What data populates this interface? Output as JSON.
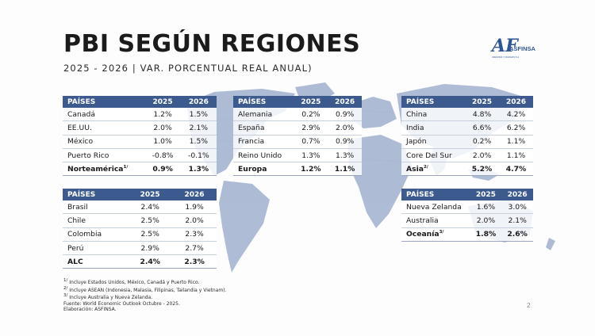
{
  "title": "PBI SEGÚN REGIONES",
  "subtitle": "2025 - 2026 | VAR. PORCENTUAL REAL ANUAL)",
  "logo": {
    "mark": "AF",
    "name": "ASFINSA",
    "tagline": "ASESORÍA Y FINANZAS S.A."
  },
  "tables": {
    "america": {
      "head": [
        "PAÍSES",
        "2025",
        "2026"
      ],
      "rows": [
        [
          "Canadá",
          "1.2%",
          "1.5%"
        ],
        [
          "EE.UU.",
          "2.0%",
          "2.1%"
        ],
        [
          "México",
          "1.0%",
          "1.5%"
        ],
        [
          "Puerto Rico",
          "-0.8%",
          "-0.1%"
        ]
      ],
      "total": [
        "Norteamérica",
        "1/",
        "0.9%",
        "1.3%"
      ]
    },
    "europa": {
      "head": [
        "PAÍSES",
        "2025",
        "2026"
      ],
      "rows": [
        [
          "Alemania",
          "0.2%",
          "0.9%"
        ],
        [
          "España",
          "2.9%",
          "2.0%"
        ],
        [
          "Francia",
          "0.7%",
          "0.9%"
        ],
        [
          "Reino Unido",
          "1.3%",
          "1.3%"
        ]
      ],
      "total": [
        "Europa",
        "",
        "1.2%",
        "1.1%"
      ]
    },
    "asia": {
      "head": [
        "PAÍSES",
        "2025",
        "2026"
      ],
      "rows": [
        [
          "China",
          "4.8%",
          "4.2%"
        ],
        [
          "India",
          "6.6%",
          "6.2%"
        ],
        [
          "Japón",
          "0.2%",
          "1.1%"
        ],
        [
          "Core Del Sur",
          "2.0%",
          "1.1%"
        ]
      ],
      "total": [
        "Asia",
        "2/",
        "5.2%",
        "4.7%"
      ]
    },
    "alc": {
      "head": [
        "PAÍSES",
        "2025",
        "2026"
      ],
      "rows": [
        [
          "Brasil",
          "2.4%",
          "1.9%"
        ],
        [
          "Chile",
          "2.5%",
          "2.0%"
        ],
        [
          "Colombia",
          "2.5%",
          "2.3%"
        ],
        [
          "Perú",
          "2.9%",
          "2.7%"
        ]
      ],
      "total": [
        "ALC",
        "",
        "2.4%",
        "2.3%"
      ]
    },
    "oceania": {
      "head": [
        "PAÍSES",
        "2025",
        "2026"
      ],
      "rows": [
        [
          "Nueva Zelanda",
          "1.6%",
          "3.0%"
        ],
        [
          "Australia",
          "2.0%",
          "2.1%"
        ]
      ],
      "total": [
        "Oceanía",
        "3/",
        "1.8%",
        "2.6%"
      ]
    }
  },
  "notes": [
    [
      "1/",
      "Incluye Estados Unidos, México, Canadá y Puerto Rico."
    ],
    [
      "2/",
      "Incluye ASEAN (Indonesia, Malasia, Filipinas, Tailandia y Vietnam)."
    ],
    [
      "3/",
      "Incluye Australia y Nueva Zelanda."
    ],
    [
      "",
      "Fuente: World Economic Outlook Octubre - 2025."
    ],
    [
      "",
      "Elaboración: ASFINSA."
    ]
  ],
  "page_number": "2",
  "colors": {
    "header": "#3d5a8f",
    "map": "#5f77a8",
    "brand": "#2f5597"
  }
}
